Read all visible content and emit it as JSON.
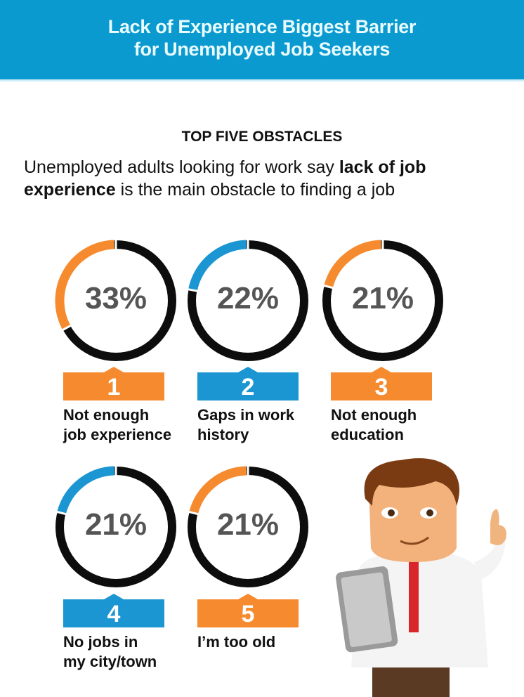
{
  "header": {
    "title_line1": "Lack of Experience Biggest Barrier",
    "title_line2": "for Unemployed Job Seekers"
  },
  "subtitle": "TOP FIVE OBSTACLES",
  "lead": {
    "part1": "Unemployed adults looking for work say ",
    "bold": "lack of job experience",
    "part2": " is the main obstacle to finding a job"
  },
  "colors": {
    "header": "#0a9ad0",
    "orange": "#f68a2e",
    "blue": "#1b96d2",
    "ring": "#0d0d0d"
  },
  "chart_data": {
    "type": "donut",
    "items": [
      {
        "rank": "1",
        "value": 33,
        "label": "33%",
        "line1": "Not enough",
        "line2": "job experience",
        "color": "orange"
      },
      {
        "rank": "2",
        "value": 22,
        "label": "22%",
        "line1": "Gaps in work",
        "line2": "history",
        "color": "blue"
      },
      {
        "rank": "3",
        "value": 21,
        "label": "21%",
        "line1": "Not enough",
        "line2": "education",
        "color": "orange"
      },
      {
        "rank": "4",
        "value": 21,
        "label": "21%",
        "line1": "No jobs in",
        "line2": "my city/town",
        "color": "blue"
      },
      {
        "rank": "5",
        "value": 21,
        "label": "21%",
        "line1": "I’m too old",
        "line2": "",
        "color": "orange"
      }
    ]
  }
}
